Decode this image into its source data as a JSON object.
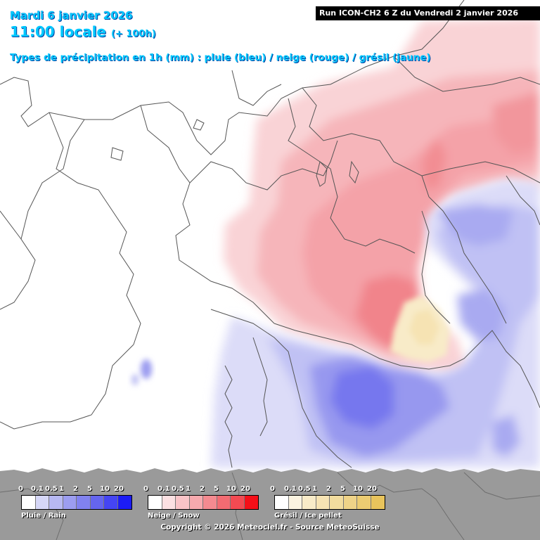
{
  "header": {
    "date": "Mardi 6 janvier 2026",
    "time": "11:00 locale",
    "lead": "(+ 100h)",
    "types": "Types de précipitation en 1h (mm) : pluie (bleu) / neige (rouge) / grésil (jaune)",
    "run": "Run ICON-CH2 6 Z du Vendredi 2 janvier 2026"
  },
  "legends": [
    {
      "title": "Pluie / Rain",
      "ticks": [
        "0",
        "0.1",
        "0.5",
        "1",
        "2",
        "5",
        "10",
        "20"
      ],
      "colors": [
        "#ffffff",
        "#d6d7f7",
        "#b7b8f2",
        "#9c9df0",
        "#8182ef",
        "#6565ee",
        "#4545f3",
        "#1c1cf5"
      ]
    },
    {
      "title": "Neige / Snow",
      "ticks": [
        "0",
        "0.1",
        "0.5",
        "1",
        "2",
        "5",
        "10",
        "20"
      ],
      "colors": [
        "#ffffff",
        "#fbe0e2",
        "#f9c4c8",
        "#f7a9ae",
        "#f48a90",
        "#f26b72",
        "#f34a52",
        "#f50f18"
      ]
    },
    {
      "title": "Grésil / Ice pellet",
      "ticks": [
        "0",
        "0.1",
        "0.5",
        "1",
        "2",
        "5",
        "10",
        "20"
      ],
      "colors": [
        "#ffffff",
        "#fbf3e0",
        "#f8ebc8",
        "#f6e3b3",
        "#f2dc9e",
        "#efd388",
        "#eccc72",
        "#e9c45c"
      ]
    }
  ],
  "copyright": "Copyright © 2026 Meteociel.fr - Source MeteoSuisse"
}
